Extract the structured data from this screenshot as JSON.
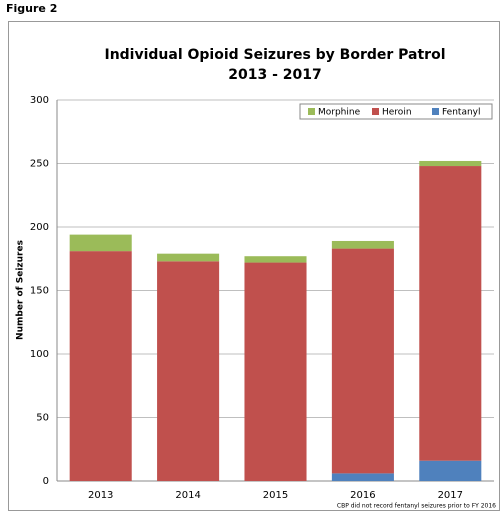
{
  "figure_label": "Figure 2",
  "chart_data": {
    "type": "stacked_bar",
    "title": "Individual Opioid Seizures by Border Patrol",
    "subtitle": "2013 - 2017",
    "y_label": "Number of Seizures",
    "note": "CBP did not record fentanyl seizures prior to FY 2016",
    "categories": [
      "2013",
      "2014",
      "2015",
      "2016",
      "2017"
    ],
    "series": [
      {
        "name": "Morphine",
        "color": "#9bbb59",
        "values": [
          13,
          6,
          5,
          6,
          4
        ]
      },
      {
        "name": "Heroin",
        "color": "#c0504d",
        "values": [
          181,
          173,
          172,
          177,
          232
        ]
      },
      {
        "name": "Fentanyl",
        "color": "#4f81bd",
        "values": [
          0,
          0,
          0,
          6,
          16
        ]
      }
    ],
    "ylim": [
      0,
      300
    ],
    "yticks": [
      0,
      50,
      100,
      150,
      200,
      250,
      300
    ],
    "grid": true,
    "legend": "top-right"
  }
}
